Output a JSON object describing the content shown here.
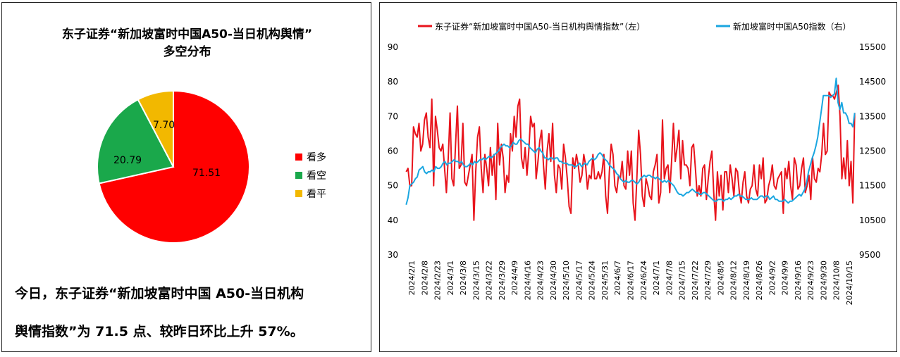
{
  "left": {
    "title_line1": "东子证券“新加坡富时中国A50-当日机构舆情”",
    "title_line2": "多空分布",
    "summary_line1": "今日，东子证券“新加坡富时中国 A50-当日机构",
    "summary_line2": "舆情指数”为 71.5 点、较昨日环比上升 57%。"
  },
  "pie_chart": {
    "type": "pie",
    "slices": [
      {
        "label": "看多",
        "value": 71.51,
        "display": "71.51",
        "color": "#ff0000"
      },
      {
        "label": "看空",
        "value": 20.79,
        "display": "20.79",
        "color": "#1aa84b"
      },
      {
        "label": "看平",
        "value": 7.7,
        "display": "7.70",
        "color": "#f2b800"
      }
    ],
    "legend_position": "right"
  },
  "chart_data": {
    "type": "line",
    "x_ticks": [
      "2024/2/1",
      "2024/2/8",
      "2024/2/23",
      "2024/3/1",
      "2024/3/8",
      "2024/3/15",
      "2024/3/22",
      "2024/3/29",
      "2024/4/9",
      "2024/4/16",
      "2024/4/23",
      "2024/4/30",
      "2024/5/10",
      "2024/5/17",
      "2024/5/24",
      "2024/5/31",
      "2024/6/7",
      "2024/6/17",
      "2024/6/24",
      "2024/7/1",
      "2024/7/8",
      "2024/7/15",
      "2024/7/22",
      "2024/7/29",
      "2024/8/5",
      "2024/8/12",
      "2024/8/19",
      "2024/8/26",
      "2024/9/2",
      "2024/9/9",
      "2024/9/16",
      "2024/9/23",
      "2024/9/30",
      "2024/10/8",
      "2024/10/15"
    ],
    "y_left": {
      "min": 30,
      "max": 90,
      "ticks": [
        30,
        40,
        50,
        60,
        70,
        80,
        90
      ]
    },
    "y_right": {
      "min": 9500,
      "max": 15500,
      "ticks": [
        9500,
        10500,
        11500,
        12500,
        13500,
        14500,
        15500
      ]
    },
    "series": [
      {
        "name": "东子证券“新加坡富时中国A50-当日机构舆情指数”（左）",
        "axis": "left",
        "color": "#e8141c",
        "values": [
          54,
          55,
          50,
          50,
          67,
          65,
          64,
          68,
          60,
          62,
          69,
          71,
          64,
          61,
          75,
          50,
          70,
          66,
          61,
          60,
          62,
          55,
          48,
          58,
          71,
          52,
          50,
          62,
          73,
          55,
          56,
          68,
          51,
          50,
          53,
          56,
          59,
          40,
          54,
          64,
          67,
          55,
          48,
          59,
          55,
          50,
          61,
          53,
          59,
          46,
          68,
          56,
          62,
          58,
          48,
          53,
          51,
          65,
          60,
          70,
          64,
          73,
          75,
          58,
          55,
          61,
          53,
          60,
          70,
          67,
          68,
          52,
          57,
          63,
          66,
          56,
          49,
          60,
          65,
          57,
          68,
          53,
          48,
          56,
          55,
          49,
          62,
          58,
          52,
          44,
          42,
          58,
          55,
          59,
          56,
          51,
          53,
          59,
          56,
          49,
          53,
          52,
          59,
          52,
          52,
          54,
          52,
          54,
          59,
          47,
          42,
          54,
          62,
          59,
          50,
          48,
          53,
          52,
          57,
          50,
          49,
          60,
          53,
          60,
          45,
          40,
          52,
          66,
          59,
          47,
          44,
          52,
          50,
          47,
          46,
          54,
          56,
          59,
          45,
          48,
          69,
          52,
          55,
          56,
          48,
          57,
          68,
          57,
          61,
          66,
          52,
          63,
          56,
          56,
          55,
          50,
          61,
          62,
          55,
          47,
          50,
          47,
          55,
          56,
          46,
          52,
          57,
          60,
          48,
          40,
          54,
          47,
          53,
          43,
          54,
          54,
          48,
          56,
          52,
          47,
          55,
          54,
          48,
          45,
          51,
          54,
          47,
          45,
          49,
          50,
          56,
          49,
          47,
          56,
          52,
          58,
          45,
          46,
          50,
          52,
          56,
          50,
          49,
          52,
          53,
          54,
          42,
          55,
          52,
          57,
          50,
          46,
          58,
          56,
          49,
          50,
          55,
          58,
          48,
          50,
          53,
          46,
          58,
          52,
          51,
          55,
          54,
          59,
          68,
          59,
          60,
          77,
          76,
          76,
          75,
          77,
          79,
          70,
          52,
          58,
          52,
          63,
          50,
          57,
          45,
          71
        ]
      },
      {
        "name": "新加坡富时中国A50指数（右）",
        "axis": "right",
        "color": "#1aa6e0",
        "values": [
          10950,
          11150,
          11500,
          11550,
          11600,
          11700,
          11750,
          11950,
          12000,
          12050,
          11900,
          11850,
          11900,
          11900,
          11950,
          11900,
          12050,
          12000,
          12000,
          12050,
          12150,
          12200,
          12100,
          12150,
          12150,
          12200,
          12250,
          12200,
          12200,
          12150,
          12200,
          12100,
          12050,
          12050,
          12100,
          12150,
          12100,
          12200,
          12150,
          12200,
          12250,
          12250,
          12300,
          12250,
          12300,
          12350,
          12300,
          12350,
          12400,
          12450,
          12500,
          12600,
          12650,
          12700,
          12650,
          12650,
          12600,
          12650,
          12750,
          12700,
          12700,
          12800,
          12850,
          12800,
          12750,
          12700,
          12700,
          12600,
          12550,
          12500,
          12450,
          12550,
          12600,
          12500,
          12450,
          12300,
          12300,
          12250,
          12300,
          12300,
          12250,
          12300,
          12300,
          12200,
          12200,
          12150,
          12150,
          12150,
          12100,
          12100,
          12100,
          12050,
          12050,
          12100,
          12150,
          12050,
          12100,
          12150,
          12100,
          12200,
          12250,
          12300,
          12250,
          12300,
          12400,
          12450,
          12400,
          12300,
          12250,
          12200,
          12100,
          12050,
          12000,
          11950,
          11850,
          11800,
          11700,
          11650,
          11600,
          11650,
          11600,
          11600,
          11650,
          11650,
          11600,
          11550,
          11600,
          11700,
          11750,
          11800,
          11750,
          11800,
          11800,
          11750,
          11750,
          11700,
          11750,
          11700,
          11650,
          11600,
          11650,
          11600,
          11650,
          11600,
          11550,
          11500,
          11400,
          11300,
          11250,
          11250,
          11200,
          11250,
          11300,
          11300,
          11350,
          11400,
          11350,
          11300,
          11300,
          11250,
          11250,
          11300,
          11300,
          11250,
          11200,
          11150,
          11100,
          11050,
          11050,
          11100,
          11100,
          11100,
          11050,
          11100,
          11100,
          11150,
          11100,
          11150,
          11200,
          11200,
          11250,
          11200,
          11200,
          11150,
          11100,
          11100,
          11100,
          11150,
          11100,
          11100,
          11100,
          11150,
          11200,
          11200,
          11150,
          11200,
          11200,
          11100,
          11150,
          11200,
          11100,
          11100,
          11050,
          11050,
          11050,
          11100,
          11050,
          11000,
          11050,
          11050,
          11100,
          11150,
          11200,
          11250,
          11200,
          11300,
          11400,
          11600,
          11900,
          12100,
          12300,
          12450,
          12650,
          12900,
          13300,
          13700,
          14100,
          14100,
          14100,
          14100,
          14050,
          14100,
          14150,
          14600,
          13900,
          13700,
          13900,
          13600,
          13600,
          13500,
          13300,
          13300,
          13200,
          13600
        ]
      }
    ],
    "legend_position": "top"
  }
}
